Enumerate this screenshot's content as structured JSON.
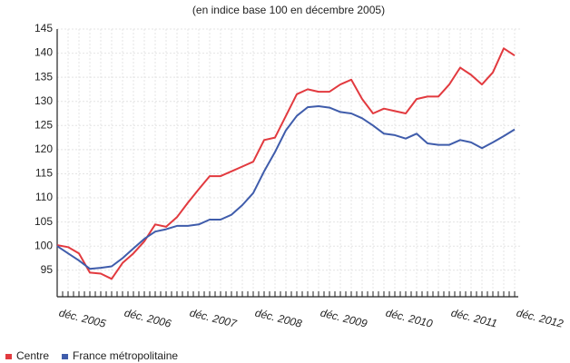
{
  "chart_data": {
    "type": "line",
    "subtitle": "(en indice base 100 en décembre 2005)",
    "categories": [
      "déc. 2005",
      null,
      null,
      null,
      null,
      null,
      "déc. 2006",
      null,
      null,
      null,
      null,
      null,
      "déc. 2007",
      null,
      null,
      null,
      null,
      null,
      "déc. 2008",
      null,
      null,
      null,
      null,
      null,
      "déc. 2009",
      null,
      null,
      null,
      null,
      null,
      "déc. 2010",
      null,
      null,
      null,
      null,
      null,
      "déc. 2011",
      null,
      null,
      null,
      null,
      null,
      "déc. 2012"
    ],
    "series": [
      {
        "name": "Centre",
        "color": "#e23a3f",
        "values": [
          100.2,
          99.8,
          98.5,
          94.5,
          94.3,
          93.2,
          96.5,
          98.5,
          101,
          104.5,
          104,
          106,
          109,
          111.8,
          114.5,
          114.5,
          115.5,
          116.5,
          117.5,
          122,
          122.5,
          127,
          131.5,
          132.5,
          132,
          132,
          133.5,
          134.5,
          130.5,
          127.5,
          128.5,
          128,
          127.5,
          130.5,
          131,
          131,
          133.5,
          137,
          135.5,
          133.5,
          136,
          141,
          139.5
        ]
      },
      {
        "name": "France métropolitaine",
        "color": "#3f5cab",
        "values": [
          100,
          98.5,
          97,
          95.3,
          95.5,
          95.8,
          97.5,
          99.5,
          101.5,
          103,
          103.5,
          104.2,
          104.2,
          104.5,
          105.5,
          105.5,
          106.5,
          108.5,
          111,
          115.5,
          119.5,
          124,
          127,
          128.8,
          129,
          128.7,
          127.8,
          127.5,
          126.5,
          125,
          123.3,
          123,
          122.3,
          123.3,
          121.3,
          121,
          121,
          122,
          121.5,
          120.3,
          121.5,
          122.8,
          124.2
        ]
      }
    ],
    "ylim": [
      89.5,
      145
    ],
    "yticks": [
      95,
      100,
      105,
      110,
      115,
      120,
      125,
      130,
      135,
      140,
      145
    ],
    "grid": true,
    "legend": "bottom-left"
  }
}
